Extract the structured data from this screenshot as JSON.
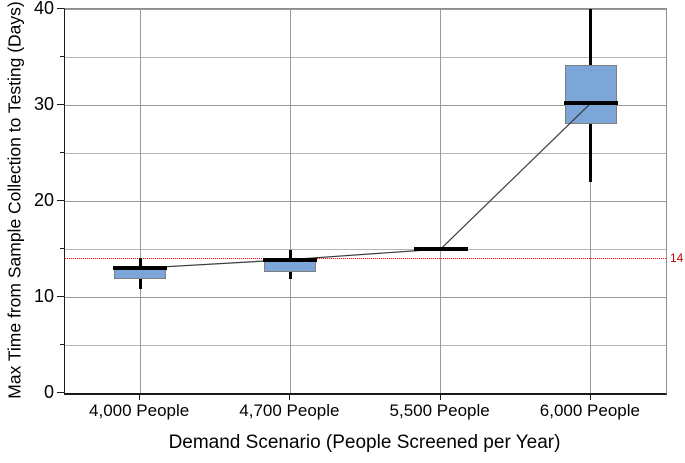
{
  "chart_data": {
    "type": "boxplot",
    "xlabel": "Demand Scenario (People Screened per Year)",
    "ylabel": "Max Time from Sample Collection to Testing (Days)",
    "categories": [
      "4,000 People",
      "4,700 People",
      "5,500 People",
      "6,000 People"
    ],
    "ylim": [
      0,
      40
    ],
    "y_major_ticks": [
      0,
      10,
      20,
      30,
      40
    ],
    "y_minor_ticks": [
      5,
      15,
      25,
      35
    ],
    "grid": "on",
    "series": [
      {
        "category": "4,000 People",
        "whisker_low": 10.8,
        "q1": 11.9,
        "median": 13.0,
        "q3": 13.2,
        "whisker_high": 14.1
      },
      {
        "category": "4,700 People",
        "whisker_low": 11.9,
        "q1": 12.6,
        "median": 13.9,
        "q3": 14.1,
        "whisker_high": 14.9
      },
      {
        "category": "5,500 People",
        "whisker_low": 14.9,
        "q1": 14.9,
        "median": 15.0,
        "q3": 15.1,
        "whisker_high": 15.1
      },
      {
        "category": "6,000 People",
        "whisker_low": 22.0,
        "q1": 28.0,
        "median": 30.2,
        "q3": 34.2,
        "whisker_high": 40.0
      }
    ],
    "median_connector": true,
    "reference_line": {
      "value": 14,
      "label": "14",
      "style": "dotted"
    },
    "colors": {
      "box_fill": "#7ca5d8",
      "box_border": "#7f7f7f",
      "median": "#000000",
      "whisker": "#000000",
      "connector": "#3a3a3a",
      "reference_line": "#ff0000",
      "reference_label": "#c00000",
      "major_gridline": "#999999",
      "minor_gridline": "#b3b3b3"
    }
  }
}
